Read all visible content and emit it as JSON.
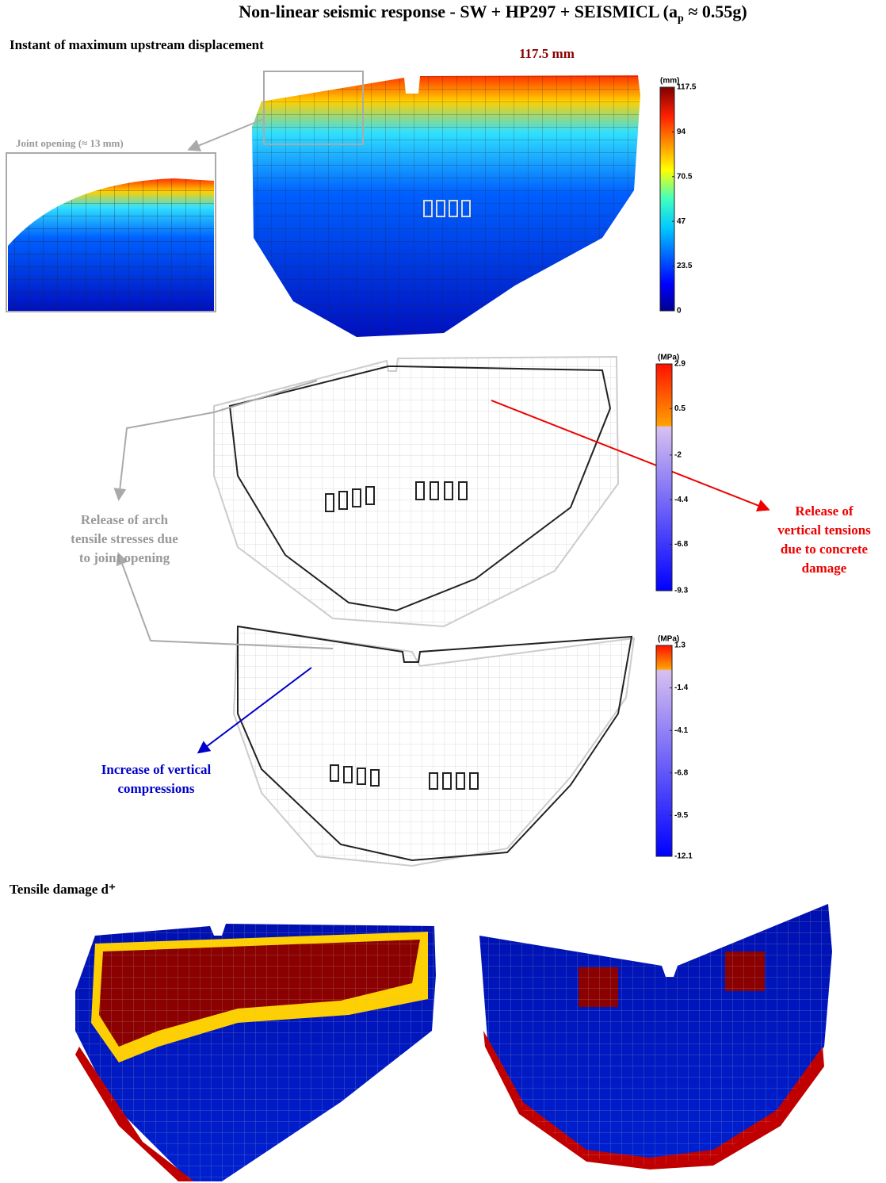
{
  "title": {
    "main": "Non-linear seismic response - SW + HP297 + SEISMICL (a",
    "subscript": "p",
    "end": " ≈ 0.55g)"
  },
  "sections": {
    "displacement": "Instant of maximum upstream displacement",
    "damage": "Tensile damage d⁺"
  },
  "peak_label": "117.5 mm",
  "inset_label": "Joint opening (≈ 13 mm)",
  "annotations": {
    "arch": [
      "Release of arch",
      "tensile stresses due",
      "to joint opening"
    ],
    "tension": [
      "Release of",
      "vertical tensions",
      "due to concrete",
      "damage"
    ],
    "compression": [
      "Increase of vertical",
      "compressions"
    ]
  },
  "colorbars": [
    {
      "unit": "(mm)",
      "ticks": [
        117.5,
        94,
        70.5,
        47,
        23.5,
        0
      ]
    },
    {
      "unit": "(MPa)",
      "ticks": [
        2.9,
        0.5,
        -2,
        -4.4,
        -6.8,
        -9.3
      ]
    },
    {
      "unit": "(MPa)",
      "ticks": [
        1.3,
        -1.4,
        -4.1,
        -6.8,
        -9.5,
        -12.1
      ]
    }
  ]
}
